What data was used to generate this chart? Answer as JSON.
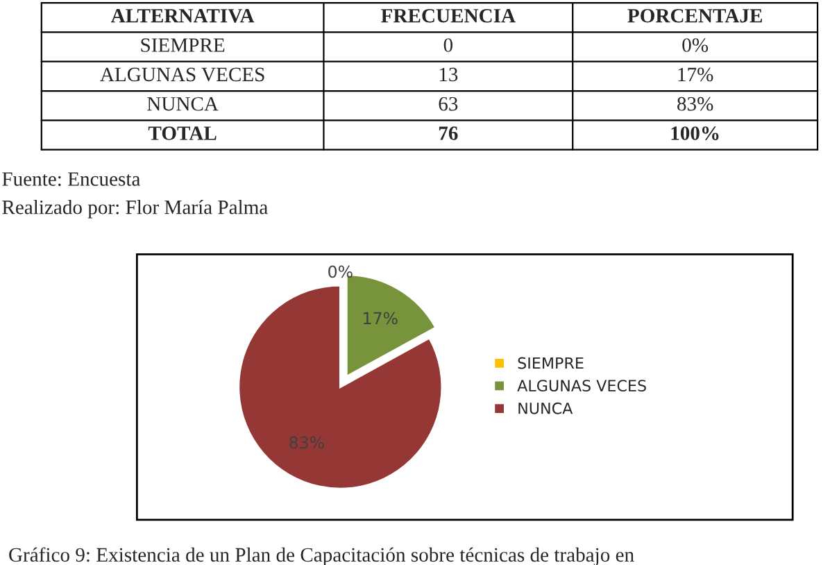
{
  "chart_data": {
    "type": "pie",
    "categories": [
      "SIEMPRE",
      "ALGUNAS VECES",
      "NUNCA"
    ],
    "values": [
      0,
      17,
      83
    ],
    "colors": [
      "#ffc000",
      "#77933c",
      "#953735"
    ],
    "value_labels": [
      "0%",
      "17%",
      "83%"
    ],
    "legend": "right",
    "annotations": [
      "ALTERNATIVA",
      "FRECUENCIA",
      "PORCENTAJE",
      "SIEMPRE",
      "0",
      "0%",
      "ALGUNAS VECES",
      "13",
      "17%",
      "NUNCA",
      "63",
      "83%",
      "TOTAL",
      "76",
      "100%",
      "Fuente: Encuesta",
      "Realizado por: Flor María Palma",
      "Gráfico 9: Existencia de un Plan de Capacitación sobre técnicas de trabajo en"
    ]
  }
}
